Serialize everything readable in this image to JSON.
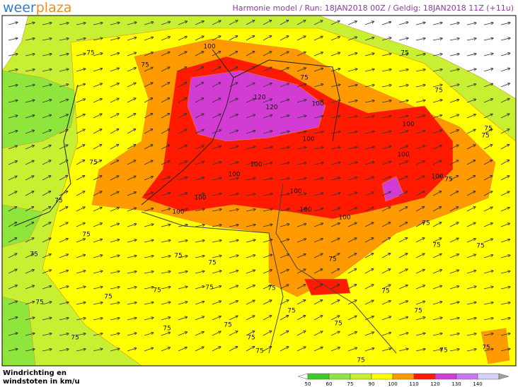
{
  "header": {
    "logo_left": "weer",
    "logo_right": "plaza",
    "info": "Harmonie model / Run: 18JAN2018 00Z / Geldig: 18JAN2018 11Z (+11u)"
  },
  "footer": {
    "caption_line1": "Windrichting en",
    "caption_line2": "windstoten in km/u"
  },
  "legend": {
    "ticks": [
      "50",
      "60",
      "75",
      "90",
      "100",
      "110",
      "120",
      "130",
      "140"
    ],
    "colors": [
      "#3ccc28",
      "#8ee63c",
      "#c8f032",
      "#ffff00",
      "#ff9a00",
      "#ff1a00",
      "#d23cd2",
      "#c878f0",
      "#d2d2fa"
    ]
  },
  "map": {
    "contour_labels": [
      "75",
      "75",
      "100",
      "75",
      "75",
      "75",
      "120",
      "120",
      "100",
      "100",
      "100",
      "75",
      "75",
      "75",
      "100",
      "100",
      "100",
      "100",
      "75",
      "100",
      "100",
      "100",
      "100",
      "100",
      "75",
      "75",
      "75",
      "75",
      "75",
      "75",
      "75",
      "75",
      "75",
      "75",
      "75",
      "75",
      "75",
      "75",
      "75",
      "75",
      "75",
      "75",
      "75",
      "75",
      "75",
      "75",
      "75",
      "75",
      "75",
      "75"
    ]
  }
}
